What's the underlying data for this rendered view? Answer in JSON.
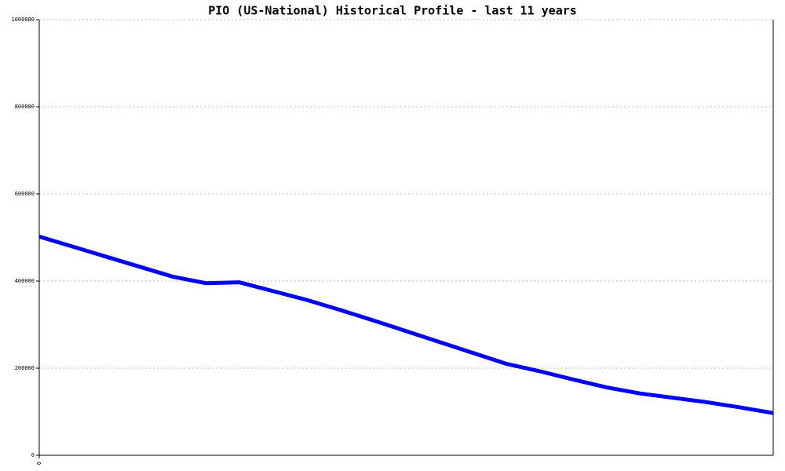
{
  "chart_data": {
    "type": "line",
    "title": "PIO (US-National) Historical Profile - last 11 years",
    "categories": [
      "0",
      null,
      null,
      null,
      null,
      null,
      null,
      null,
      null,
      null,
      null,
      null,
      null,
      null,
      null,
      null,
      null,
      null,
      null,
      null,
      null,
      null,
      null
    ],
    "series": [
      {
        "color": "#0000ff",
        "values": [
          502000,
          479000,
          456000,
          433000,
          410000,
          395000,
          397000,
          377000,
          357000,
          334000,
          310000,
          285000,
          260000,
          235000,
          210000,
          193000,
          174000,
          156000,
          142000,
          132000,
          122000,
          110000,
          97000
        ]
      }
    ],
    "ylim": [
      0,
      1000000
    ],
    "yticks": [
      0,
      200000,
      400000,
      600000,
      800000,
      1000000
    ],
    "grid": true
  }
}
